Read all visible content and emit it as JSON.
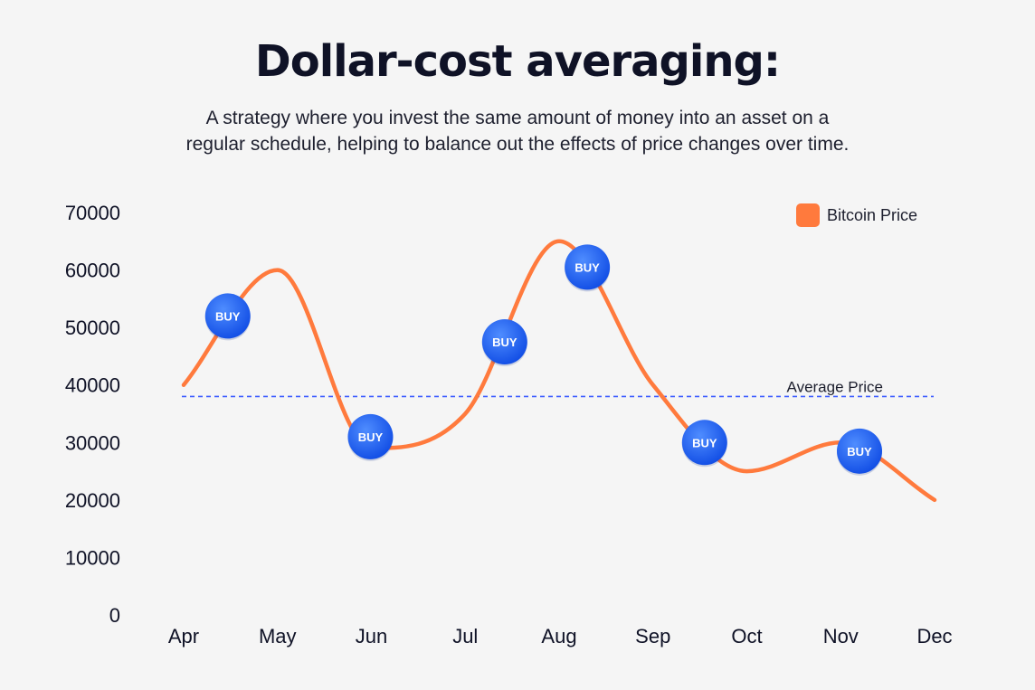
{
  "header": {
    "title": "Dollar-cost averaging:",
    "subtitle_line1": "A strategy where you invest the same amount of money into an asset on a",
    "subtitle_line2": "regular schedule, helping to balance out the effects of price changes over time."
  },
  "chart_data": {
    "type": "line",
    "categories": [
      "Apr",
      "May",
      "Jun",
      "Jul",
      "Aug",
      "Sep",
      "Oct",
      "Nov",
      "Dec"
    ],
    "series": [
      {
        "name": "Bitcoin Price",
        "color": "#ff7a3d",
        "x": [
          0,
          1,
          2,
          3,
          4,
          5,
          6,
          7,
          8
        ],
        "values": [
          40000,
          60000,
          29000,
          35000,
          65000,
          40000,
          25000,
          30000,
          20000
        ]
      }
    ],
    "yticks": [
      0,
      10000,
      20000,
      30000,
      40000,
      50000,
      60000,
      70000
    ],
    "ylim": [
      0,
      70000
    ],
    "average_price": {
      "label": "Average Price",
      "value": 38000,
      "color": "#3b5bff"
    },
    "buy_markers": {
      "label": "BUY",
      "color": "#1e6bff",
      "points": [
        {
          "x": 0.47,
          "y": 52000
        },
        {
          "x": 1.99,
          "y": 31000
        },
        {
          "x": 3.42,
          "y": 47500
        },
        {
          "x": 4.3,
          "y": 60500
        },
        {
          "x": 5.55,
          "y": 30000
        },
        {
          "x": 7.2,
          "y": 28500
        }
      ]
    },
    "legend": {
      "label": "Bitcoin Price",
      "color": "#ff7a3d",
      "position": "top-right"
    },
    "grid": false
  }
}
